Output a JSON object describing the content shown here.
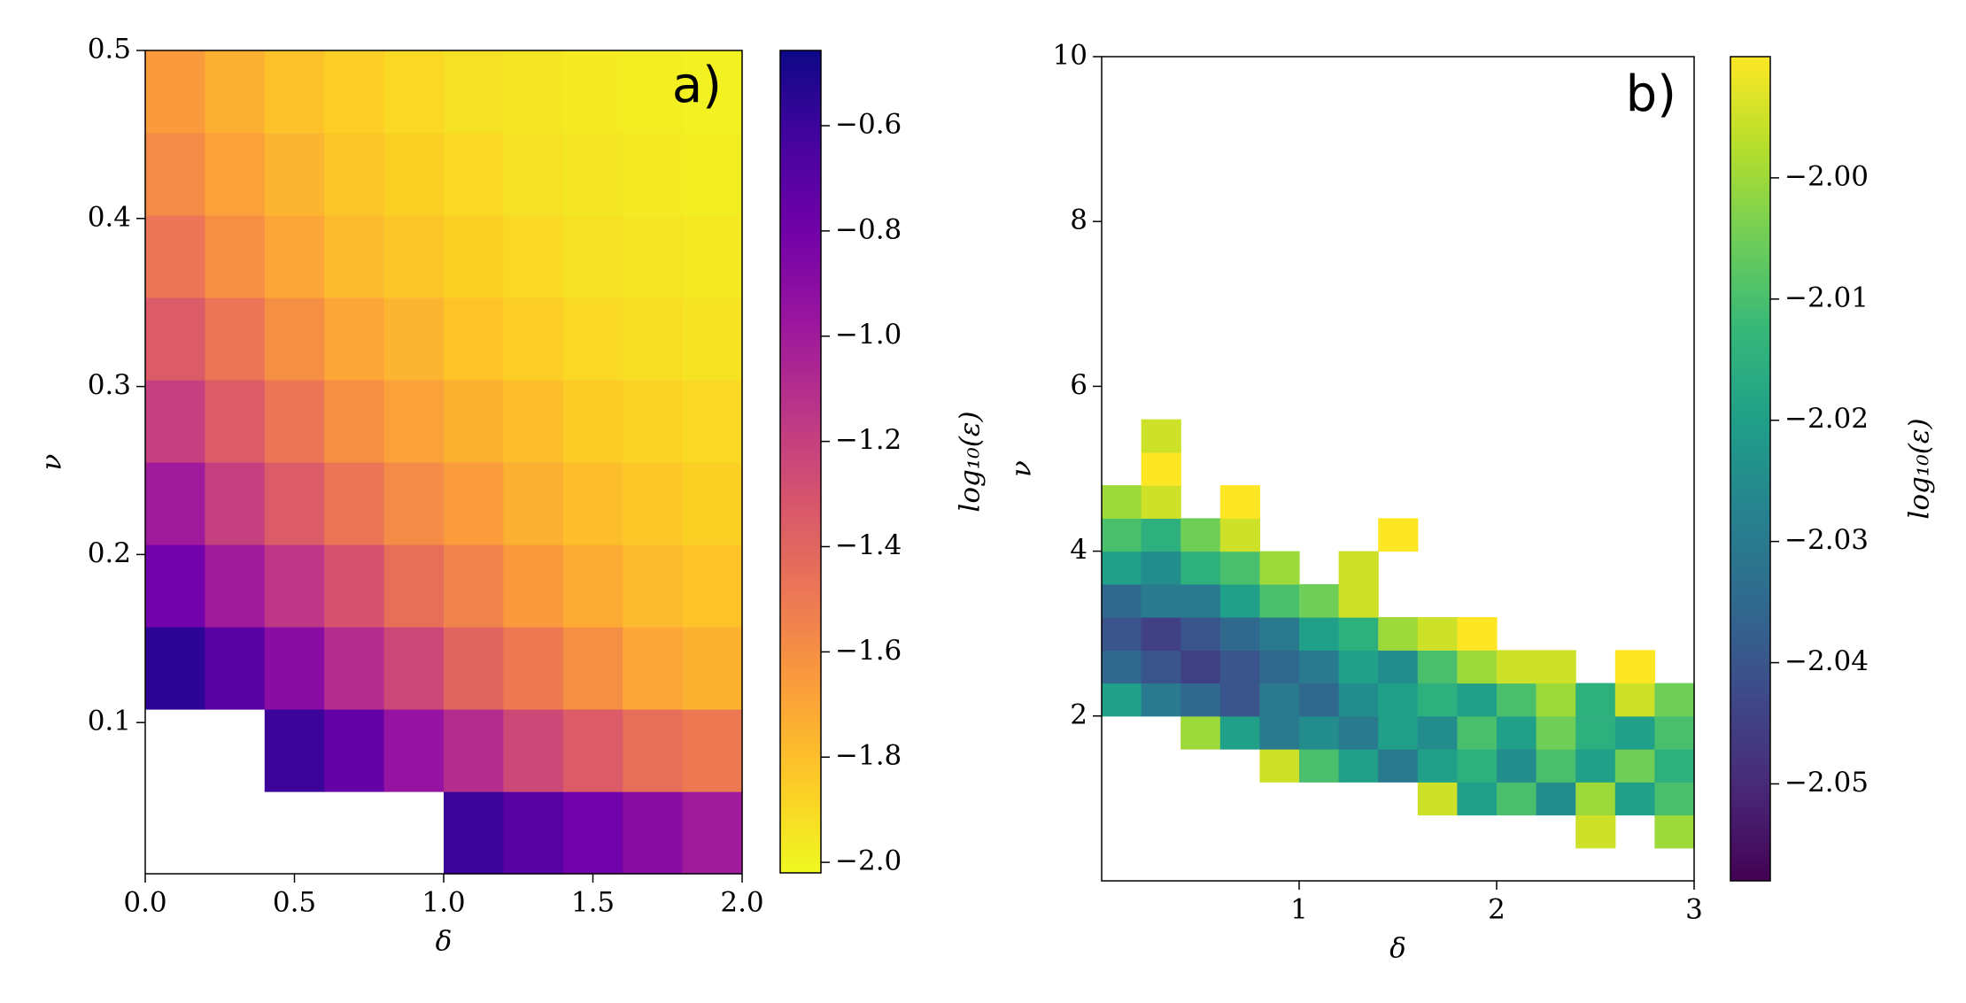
{
  "chart_data": [
    {
      "type": "heatmap",
      "annotation": "a)",
      "xlabel": "δ",
      "ylabel": "ν",
      "colorbar_label": "log₁₀(ε)",
      "colormap": "plasma_r",
      "xlim": [
        0,
        2
      ],
      "ylim": [
        0.01,
        0.5
      ],
      "clim": [
        -2.02,
        -0.457
      ],
      "xticks": [
        {
          "value": 0,
          "label": "0.0"
        },
        0.5,
        {
          "value": 1,
          "label": "1.0"
        },
        1.5,
        {
          "value": 2,
          "label": "2.0"
        }
      ],
      "yticks": [
        0.1,
        0.2,
        0.3,
        0.4,
        0.5
      ],
      "cticks": [
        {
          "value": -0.6,
          "label": "−0.6"
        },
        {
          "value": -0.8,
          "label": "−0.8"
        },
        {
          "value": -1.0,
          "label": "−1.0"
        },
        {
          "value": -1.2,
          "label": "−1.2"
        },
        {
          "value": -1.4,
          "label": "−1.4"
        },
        {
          "value": -1.6,
          "label": "−1.6"
        },
        {
          "value": -1.8,
          "label": "−1.8"
        },
        {
          "value": -2.0,
          "label": "−2.0"
        }
      ],
      "xbins": [
        0,
        0.2,
        0.4,
        0.6,
        0.8,
        1.0,
        1.2,
        1.4,
        1.6,
        1.8,
        2.0
      ],
      "ybins": [
        0.01,
        0.059,
        0.108,
        0.157,
        0.206,
        0.255,
        0.304,
        0.353,
        0.402,
        0.451,
        0.5
      ],
      "z": [
        [
          null,
          null,
          null,
          null,
          null,
          -0.6,
          -0.7,
          -0.8,
          -0.9,
          -1.0
        ],
        [
          null,
          null,
          -0.6,
          -0.75,
          -0.95,
          -1.1,
          -1.25,
          -1.35,
          -1.45,
          -1.5
        ],
        [
          -0.55,
          -0.7,
          -0.9,
          -1.1,
          -1.25,
          -1.4,
          -1.5,
          -1.6,
          -1.7,
          -1.75
        ],
        [
          -0.8,
          -1.0,
          -1.15,
          -1.3,
          -1.45,
          -1.55,
          -1.65,
          -1.72,
          -1.78,
          -1.82
        ],
        [
          -1.0,
          -1.2,
          -1.35,
          -1.48,
          -1.58,
          -1.66,
          -1.74,
          -1.8,
          -1.84,
          -1.87
        ],
        [
          -1.2,
          -1.35,
          -1.48,
          -1.6,
          -1.68,
          -1.75,
          -1.8,
          -1.85,
          -1.88,
          -1.9
        ],
        [
          -1.35,
          -1.48,
          -1.6,
          -1.7,
          -1.76,
          -1.82,
          -1.86,
          -1.9,
          -1.92,
          -1.94
        ],
        [
          -1.48,
          -1.6,
          -1.7,
          -1.78,
          -1.83,
          -1.87,
          -1.9,
          -1.93,
          -1.95,
          -1.96
        ],
        [
          -1.58,
          -1.68,
          -1.76,
          -1.83,
          -1.87,
          -1.9,
          -1.93,
          -1.95,
          -1.97,
          -1.98
        ],
        [
          -1.65,
          -1.74,
          -1.81,
          -1.86,
          -1.9,
          -1.93,
          -1.95,
          -1.97,
          -1.98,
          -1.99
        ]
      ]
    },
    {
      "type": "heatmap",
      "annotation": "b)",
      "xlabel": "δ",
      "ylabel": "ν",
      "colorbar_label": "log₁₀(ε)",
      "colormap": "viridis",
      "xlim": [
        0,
        3
      ],
      "ylim": [
        0,
        10
      ],
      "clim": [
        -2.058,
        -1.99
      ],
      "xticks": [
        1,
        2,
        3
      ],
      "yticks": [
        2,
        4,
        6,
        8,
        10
      ],
      "cticks": [
        {
          "value": -2.0,
          "label": "−2.00"
        },
        {
          "value": -2.01,
          "label": "−2.01"
        },
        {
          "value": -2.02,
          "label": "−2.02"
        },
        {
          "value": -2.03,
          "label": "−2.03"
        },
        {
          "value": -2.04,
          "label": "−2.04"
        },
        {
          "value": -2.05,
          "label": "−2.05"
        }
      ],
      "xbins": [
        0,
        0.2,
        0.4,
        0.6,
        0.8,
        1.0,
        1.2,
        1.4,
        1.6,
        1.8,
        2.0,
        2.2,
        2.4,
        2.6,
        2.8,
        3.0
      ],
      "ybins": [
        0.4,
        0.8,
        1.2,
        1.6,
        2.0,
        2.4,
        2.8,
        3.2,
        3.6,
        4.0,
        4.4,
        4.8,
        5.2,
        5.6
      ],
      "z": [
        [
          null,
          null,
          null,
          null,
          null,
          null,
          null,
          null,
          null,
          null,
          null,
          null,
          -1.995,
          null,
          -2.0
        ],
        [
          null,
          null,
          null,
          null,
          null,
          null,
          null,
          null,
          -1.995,
          -2.02,
          -2.01,
          -2.025,
          -2.0,
          -2.02,
          -2.01
        ],
        [
          null,
          null,
          null,
          null,
          -1.995,
          -2.01,
          -2.02,
          -2.03,
          -2.02,
          -2.015,
          -2.025,
          -2.01,
          -2.02,
          -2.005,
          -2.015
        ],
        [
          null,
          null,
          -2.0,
          -2.02,
          -2.03,
          -2.025,
          -2.03,
          -2.02,
          -2.025,
          -2.01,
          -2.02,
          -2.005,
          -2.015,
          -2.02,
          -2.01
        ],
        [
          -2.02,
          -2.03,
          -2.035,
          -2.04,
          -2.03,
          -2.035,
          -2.025,
          -2.02,
          -2.015,
          -2.02,
          -2.01,
          -2.0,
          -2.015,
          -1.995,
          -2.005
        ],
        [
          -2.035,
          -2.04,
          -2.045,
          -2.04,
          -2.035,
          -2.03,
          -2.02,
          -2.025,
          -2.01,
          -2.0,
          -1.995,
          -1.995,
          null,
          -1.99,
          null
        ],
        [
          -2.04,
          -2.045,
          -2.04,
          -2.035,
          -2.03,
          -2.02,
          -2.015,
          -2.0,
          -1.995,
          -1.99,
          null,
          null,
          null,
          null,
          null
        ],
        [
          -2.035,
          -2.03,
          -2.03,
          -2.02,
          -2.01,
          -2.005,
          -1.995,
          null,
          null,
          null,
          null,
          null,
          null,
          null,
          null
        ],
        [
          -2.02,
          -2.025,
          -2.015,
          -2.01,
          -2.0,
          null,
          -1.995,
          null,
          null,
          null,
          null,
          null,
          null,
          null,
          null
        ],
        [
          -2.01,
          -2.015,
          -2.005,
          -1.995,
          null,
          null,
          null,
          -1.99,
          null,
          null,
          null,
          null,
          null,
          null,
          null
        ],
        [
          -2.0,
          -1.995,
          null,
          -1.99,
          null,
          null,
          null,
          null,
          null,
          null,
          null,
          null,
          null,
          null,
          null
        ],
        [
          null,
          -1.99,
          null,
          null,
          null,
          null,
          null,
          null,
          null,
          null,
          null,
          null,
          null,
          null,
          null
        ],
        [
          null,
          -1.995,
          null,
          null,
          null,
          null,
          null,
          null,
          null,
          null,
          null,
          null,
          null,
          null,
          null
        ]
      ]
    }
  ]
}
